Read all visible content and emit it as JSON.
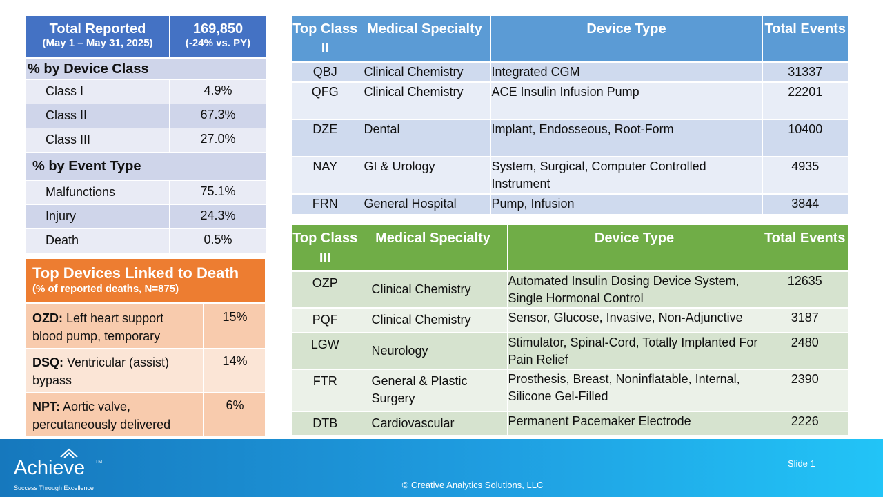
{
  "summary": {
    "title": "Total Reported",
    "period": "(May 1 – May 31, 2025)",
    "total": "169,850",
    "change": "(-24% vs. PY)",
    "by_class_label": "% by Device Class",
    "classes": [
      {
        "label": "Class I",
        "value": "4.9%"
      },
      {
        "label": "Class II",
        "value": "67.3%"
      },
      {
        "label": "Class III",
        "value": "27.0%"
      }
    ],
    "by_event_label": "% by Event Type",
    "events": [
      {
        "label": "Malfunctions",
        "value": "75.1%"
      },
      {
        "label": "Injury",
        "value": "24.3%"
      },
      {
        "label": "Death",
        "value": "0.5%"
      }
    ]
  },
  "death": {
    "title": "Top Devices Linked to Death",
    "subtitle": "(% of reported deaths, N=875)",
    "rows": [
      {
        "code": "OZD:",
        "desc": " Left heart support blood pump, temporary",
        "pct": "15%"
      },
      {
        "code": "DSQ:",
        "desc": " Ventricular (assist) bypass",
        "pct": "14%"
      },
      {
        "code": "NPT:",
        "desc": " Aortic valve, percutaneously delivered",
        "pct": "6%"
      }
    ]
  },
  "class2": {
    "headers": [
      "Top Class II",
      "Medical Specialty",
      "Device Type",
      "Total Events"
    ],
    "rows": [
      {
        "code": "QBJ",
        "specialty": "Clinical Chemistry",
        "device": "Integrated CGM",
        "events": "31337"
      },
      {
        "code": "QFG",
        "specialty": "Clinical Chemistry",
        "device": "ACE Insulin Infusion Pump",
        "events": "22201"
      },
      {
        "code": "DZE",
        "specialty": "Dental",
        "device": "Implant, Endosseous, Root-Form",
        "events": "10400"
      },
      {
        "code": "NAY",
        "specialty": "GI & Urology",
        "device": "System, Surgical, Computer Controlled Instrument",
        "events": "4935"
      },
      {
        "code": "FRN",
        "specialty": "General Hospital",
        "device": "Pump, Infusion",
        "events": "3844"
      }
    ]
  },
  "class3": {
    "headers": [
      "Top Class III",
      "Medical Specialty",
      "Device Type",
      "Total Events"
    ],
    "rows": [
      {
        "code": "OZP",
        "specialty": "Clinical Chemistry",
        "device": "Automated Insulin Dosing Device System, Single Hormonal Control",
        "events": "12635"
      },
      {
        "code": "PQF",
        "specialty": "Clinical Chemistry",
        "device": "Sensor, Glucose, Invasive, Non-Adjunctive",
        "events": "3187"
      },
      {
        "code": "LGW",
        "specialty": "Neurology",
        "device": "Stimulator, Spinal-Cord, Totally Implanted For Pain Relief",
        "events": "2480"
      },
      {
        "code": "FTR",
        "specialty": "General & Plastic Surgery",
        "device": "Prosthesis, Breast, Noninflatable, Internal, Silicone Gel-Filled",
        "events": "2390"
      },
      {
        "code": "DTB",
        "specialty": "Cardiovascular",
        "device": "Permanent Pacemaker Electrode",
        "events": "2226"
      }
    ]
  },
  "footer": {
    "logo_text": "Achieve",
    "logo_tm": "TM",
    "tagline": "Success Through Excellence",
    "slide": "Slide 1",
    "copyright": "© Creative Analytics Solutions, LLC"
  },
  "colors": {
    "summary_header": "#4472c4",
    "death_header": "#ed7d31",
    "class2_header": "#5b9bd5",
    "class3_header": "#70ad47"
  }
}
